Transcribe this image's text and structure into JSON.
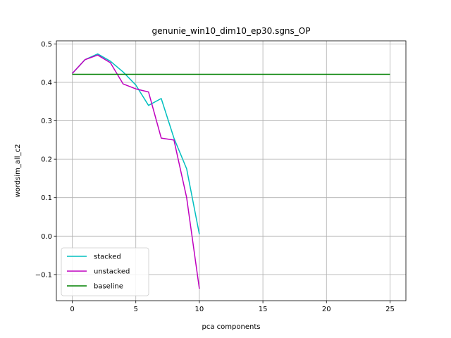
{
  "chart_data": {
    "type": "line",
    "title": "genunie_win10_dim10_ep30.sgns_OP",
    "xlabel": "pca components",
    "ylabel": "wordsim_all_c2",
    "xlim": [
      -1.25,
      26.25
    ],
    "ylim": [
      -0.168,
      0.508
    ],
    "xticks": [
      0,
      5,
      10,
      15,
      20,
      25
    ],
    "yticks": [
      -0.1,
      0.0,
      0.1,
      0.2,
      0.3,
      0.4,
      0.5
    ],
    "ytick_labels": [
      "−0.1",
      "0.0",
      "0.1",
      "0.2",
      "0.3",
      "0.4",
      "0.5"
    ],
    "grid": true,
    "legend_position": "lower-left",
    "series": [
      {
        "name": "stacked",
        "color": "#00bfbf",
        "x": [
          0,
          1,
          2,
          3,
          4,
          5,
          6,
          7,
          8,
          9,
          10
        ],
        "y": [
          0.423,
          0.459,
          0.474,
          0.455,
          0.427,
          0.393,
          0.34,
          0.358,
          0.255,
          0.175,
          0.005
        ]
      },
      {
        "name": "unstacked",
        "color": "#bf00bf",
        "x": [
          0,
          1,
          2,
          3,
          4,
          5,
          6,
          7,
          8,
          9,
          10
        ],
        "y": [
          0.423,
          0.459,
          0.471,
          0.451,
          0.396,
          0.383,
          0.375,
          0.255,
          0.25,
          0.1,
          -0.137
        ]
      },
      {
        "name": "baseline",
        "color": "#008000",
        "x": [
          0,
          25
        ],
        "y": [
          0.421,
          0.421
        ]
      }
    ]
  }
}
